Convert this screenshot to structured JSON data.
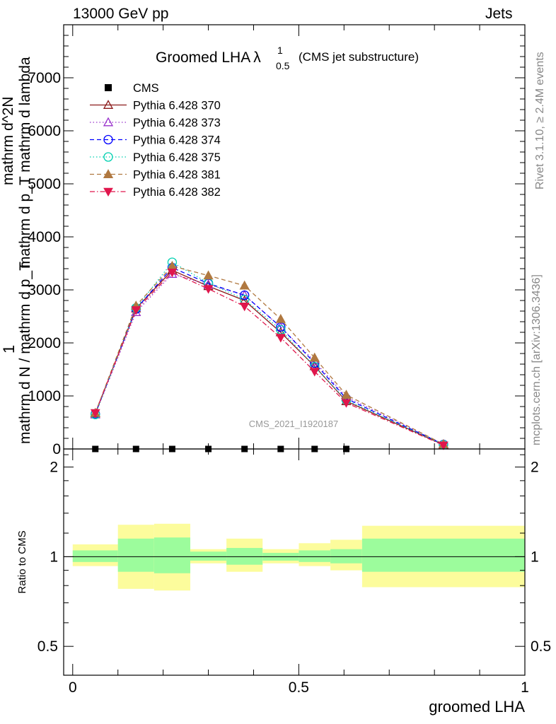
{
  "header": {
    "left": "13000 GeV pp",
    "right": "Jets"
  },
  "side_labels": {
    "rivet": "Rivet 3.1.10, ≥ 2.4M events",
    "mcplots": "mcplots.cern.ch [arXiv:1306.3436]"
  },
  "ylabel_main": {
    "frac_one": "1",
    "denominator": "mathrm d N / mathrm d p_T",
    "numerator_text": "mathrm d^2N",
    "rest_text": "mathrm d p_T mathrm d lambda"
  },
  "chart_data": [
    {
      "type": "line",
      "panel": "main",
      "title": "Groomed LHA",
      "title_symbol": "λ",
      "title_sub": "0.5",
      "title_sup": "1",
      "title_note": "(CMS jet substructure)",
      "watermark": "CMS_2021_I1920187",
      "xlim": [
        -0.02,
        1.0
      ],
      "ylim": [
        0,
        8000
      ],
      "yticks": [
        0,
        1000,
        2000,
        3000,
        4000,
        5000,
        6000,
        7000
      ],
      "ytick_labels": [
        "0",
        "1000",
        "2000",
        "3000",
        "4000",
        "5000",
        "6000",
        "7000"
      ],
      "legend_position": "top-left",
      "series": [
        {
          "name": "CMS",
          "style": "marker",
          "marker": "square",
          "color": "#000000",
          "x": [
            0.05,
            0.14,
            0.22,
            0.3,
            0.38,
            0.46,
            0.535,
            0.605
          ],
          "y": [
            0,
            0,
            0,
            0,
            0,
            0,
            0,
            0
          ]
        },
        {
          "name": "Pythia 6.428 370",
          "style": "solid",
          "marker": "triangle-open",
          "color": "#8b1a1a",
          "x": [
            0.05,
            0.14,
            0.22,
            0.3,
            0.38,
            0.46,
            0.535,
            0.605,
            0.82
          ],
          "y": [
            670,
            2650,
            3370,
            3070,
            2800,
            2200,
            1560,
            900,
            80
          ]
        },
        {
          "name": "Pythia 6.428 373",
          "style": "dotted",
          "marker": "triangle-open",
          "color": "#9932cc",
          "x": [
            0.05,
            0.14,
            0.22,
            0.3,
            0.38,
            0.46,
            0.535,
            0.605,
            0.82
          ],
          "y": [
            650,
            2580,
            3300,
            3100,
            2900,
            2300,
            1650,
            980,
            90
          ]
        },
        {
          "name": "Pythia 6.428 374",
          "style": "dashed",
          "marker": "circle-open",
          "color": "#0000ff",
          "x": [
            0.05,
            0.14,
            0.22,
            0.3,
            0.38,
            0.46,
            0.535,
            0.605,
            0.82
          ],
          "y": [
            660,
            2640,
            3420,
            3120,
            2900,
            2300,
            1620,
            950,
            85
          ]
        },
        {
          "name": "Pythia 6.428 375",
          "style": "dotted",
          "marker": "circle-open",
          "color": "#00d0b0",
          "x": [
            0.05,
            0.14,
            0.22,
            0.3,
            0.38,
            0.46,
            0.535,
            0.605,
            0.82
          ],
          "y": [
            650,
            2660,
            3520,
            3130,
            2820,
            2250,
            1550,
            920,
            80
          ]
        },
        {
          "name": "Pythia 6.428 381",
          "style": "dashed",
          "marker": "triangle-filled",
          "color": "#b07840",
          "x": [
            0.05,
            0.14,
            0.22,
            0.3,
            0.38,
            0.46,
            0.535,
            0.605,
            0.82
          ],
          "y": [
            680,
            2700,
            3450,
            3270,
            3080,
            2450,
            1720,
            1020,
            90
          ]
        },
        {
          "name": "Pythia 6.428 382",
          "style": "dashdot",
          "marker": "triangle-down-filled",
          "color": "#e0164c",
          "x": [
            0.05,
            0.14,
            0.22,
            0.3,
            0.38,
            0.46,
            0.535,
            0.605,
            0.82
          ],
          "y": [
            680,
            2620,
            3330,
            3020,
            2690,
            2100,
            1460,
            870,
            70
          ]
        }
      ]
    },
    {
      "type": "area",
      "panel": "ratio",
      "ylabel": "Ratio to CMS",
      "xlabel": "groomed LHA",
      "ylim": [
        0.4,
        2.3
      ],
      "log_y": true,
      "yticks": [
        0.5,
        1,
        2
      ],
      "ytick_labels": [
        "0.5",
        "1",
        "2"
      ],
      "xticks": [
        0,
        0.5,
        1
      ],
      "xtick_labels": [
        "0",
        "0.5",
        "1"
      ],
      "reference_line": 1,
      "bins": [
        {
          "x0": 0.0,
          "x1": 0.1,
          "green": [
            0.96,
            1.05
          ],
          "yellow": [
            0.93,
            1.1
          ]
        },
        {
          "x0": 0.1,
          "x1": 0.18,
          "green": [
            0.89,
            1.15
          ],
          "yellow": [
            0.78,
            1.28
          ]
        },
        {
          "x0": 0.18,
          "x1": 0.26,
          "green": [
            0.88,
            1.16
          ],
          "yellow": [
            0.77,
            1.29
          ]
        },
        {
          "x0": 0.26,
          "x1": 0.34,
          "green": [
            0.97,
            1.04
          ],
          "yellow": [
            0.95,
            1.06
          ]
        },
        {
          "x0": 0.34,
          "x1": 0.42,
          "green": [
            0.94,
            1.07
          ],
          "yellow": [
            0.89,
            1.15
          ]
        },
        {
          "x0": 0.42,
          "x1": 0.5,
          "green": [
            0.97,
            1.03
          ],
          "yellow": [
            0.95,
            1.06
          ]
        },
        {
          "x0": 0.5,
          "x1": 0.57,
          "green": [
            0.96,
            1.05
          ],
          "yellow": [
            0.93,
            1.11
          ]
        },
        {
          "x0": 0.57,
          "x1": 0.64,
          "green": [
            0.95,
            1.06
          ],
          "yellow": [
            0.9,
            1.14
          ]
        },
        {
          "x0": 0.64,
          "x1": 1.0,
          "green": [
            0.89,
            1.15
          ],
          "yellow": [
            0.79,
            1.27
          ]
        }
      ],
      "colors": {
        "green": "#9cfc9c",
        "yellow": "#fcfc9c"
      }
    }
  ]
}
